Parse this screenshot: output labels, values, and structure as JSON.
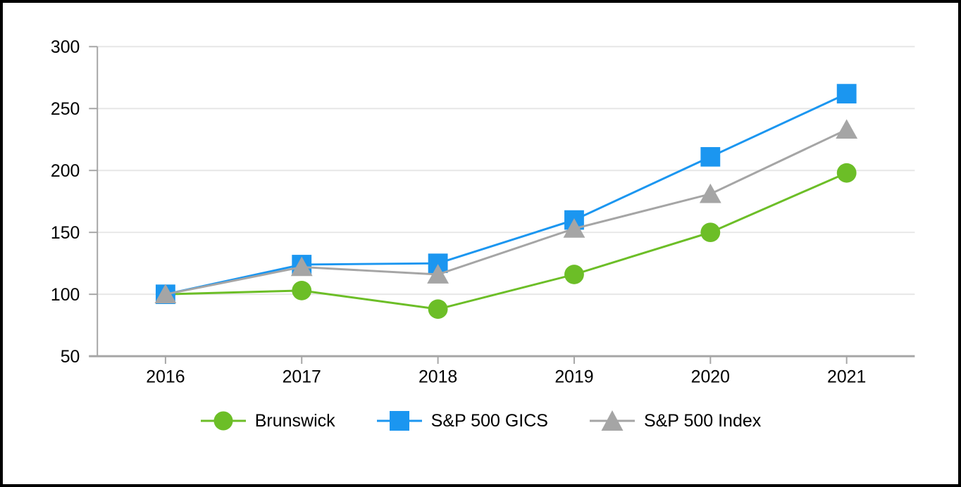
{
  "frame": {
    "background": "#ffffff",
    "border_color": "#000000"
  },
  "chart_data": {
    "type": "line",
    "title": "",
    "xlabel": "",
    "ylabel": "",
    "categories": [
      "2016",
      "2017",
      "2018",
      "2019",
      "2020",
      "2021"
    ],
    "series": [
      {
        "name": "Brunswick",
        "marker": "circle",
        "color": "#6CBE27",
        "values": [
          100,
          103,
          88,
          116,
          150,
          198
        ]
      },
      {
        "name": "S&P 500 GICS",
        "marker": "square",
        "color": "#1B96F0",
        "values": [
          100,
          124,
          125,
          160,
          211,
          262
        ]
      },
      {
        "name": "S&P 500 Index",
        "marker": "triangle",
        "color": "#A5A5A5",
        "values": [
          100,
          122,
          116,
          153,
          181,
          233
        ]
      }
    ],
    "y_axis": {
      "min": 50,
      "max": 300,
      "tick_interval": 50,
      "ticks": [
        300,
        250,
        200,
        150,
        100,
        50
      ]
    },
    "x_axis": {
      "ticks": [
        "2016",
        "2017",
        "2018",
        "2019",
        "2020",
        "2021"
      ]
    },
    "grid": true,
    "legend_position": "bottom",
    "styles": {
      "axis_color": "#A6A6A6",
      "gridline_color": "#E7E7E7",
      "text_color": "#000000",
      "label_font_size": 25
    }
  }
}
